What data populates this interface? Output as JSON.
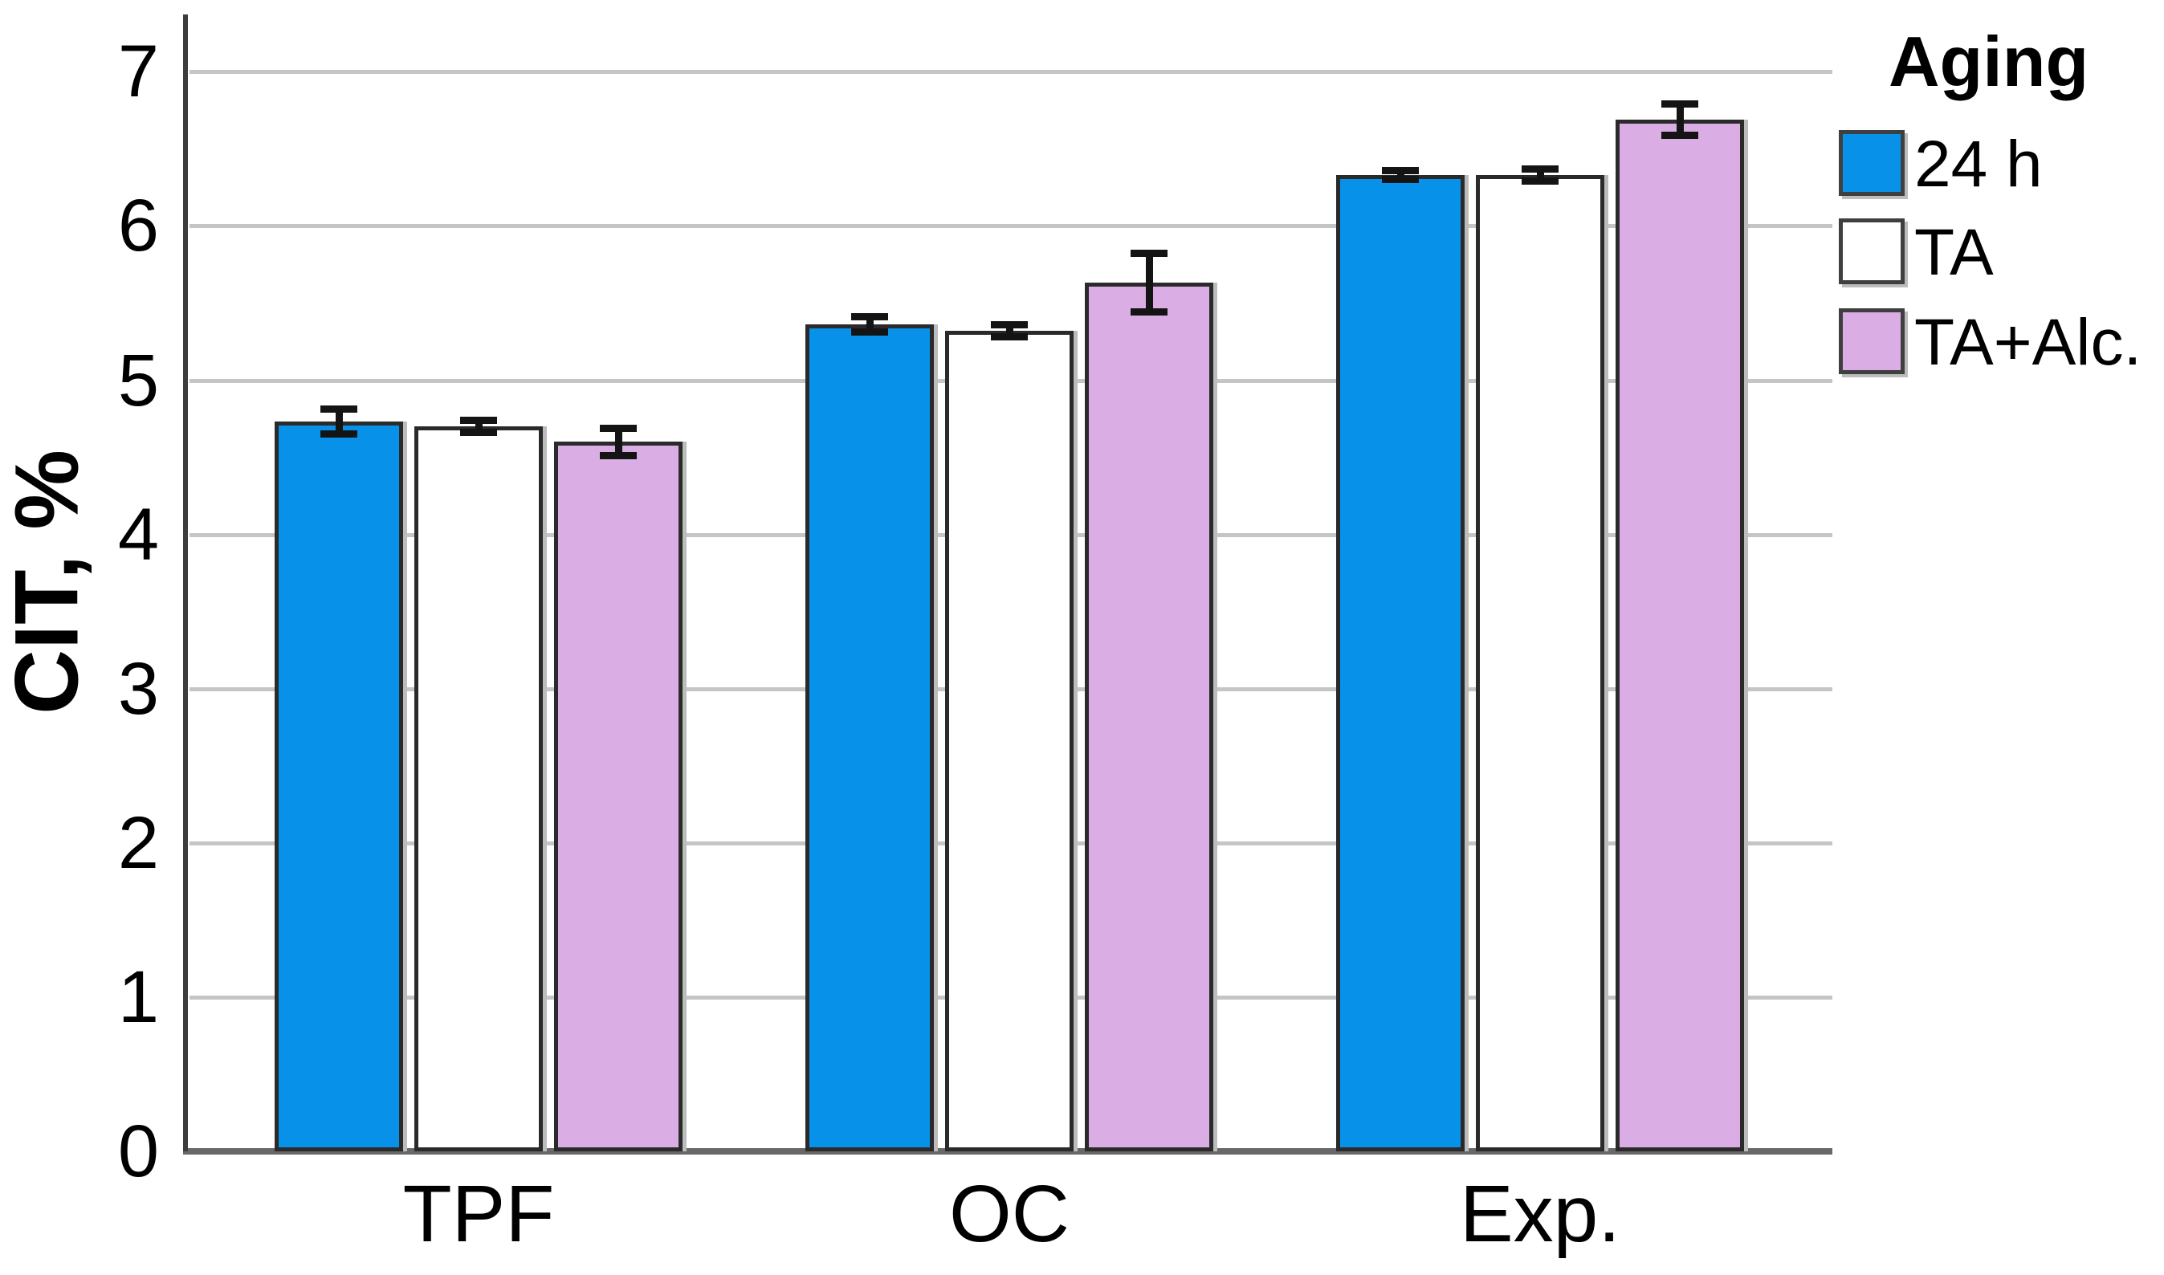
{
  "chart_data": {
    "type": "bar",
    "title": "",
    "xlabel": "",
    "ylabel": "CIT, %",
    "legend_title": "Aging",
    "legend_position": "right",
    "grid": "horizontal",
    "error_bars": true,
    "categories": [
      "TPF",
      "OC",
      "Exp."
    ],
    "series": [
      {
        "name": "24 h",
        "color": "#0791e9",
        "values": [
          4.73,
          5.36,
          6.33
        ],
        "errors": [
          0.08,
          0.05,
          0.03
        ]
      },
      {
        "name": "TA",
        "color": "#ffffff",
        "values": [
          4.7,
          5.32,
          6.33
        ],
        "errors": [
          0.04,
          0.04,
          0.04
        ]
      },
      {
        "name": "TA+Alc.",
        "color": "#daaee4",
        "values": [
          4.6,
          5.63,
          6.69
        ],
        "errors": [
          0.09,
          0.19,
          0.1
        ]
      }
    ],
    "y_ticks": [
      0,
      1,
      2,
      3,
      4,
      5,
      6,
      7
    ],
    "ylim": [
      0,
      7.37
    ],
    "colors": {
      "grid": "#c5c5c5",
      "y_axis": "#3d3d3d",
      "x_axis": "#686868",
      "bar_border": "#2a2a2a",
      "error_bar": "#141414",
      "text": "#000000"
    }
  }
}
